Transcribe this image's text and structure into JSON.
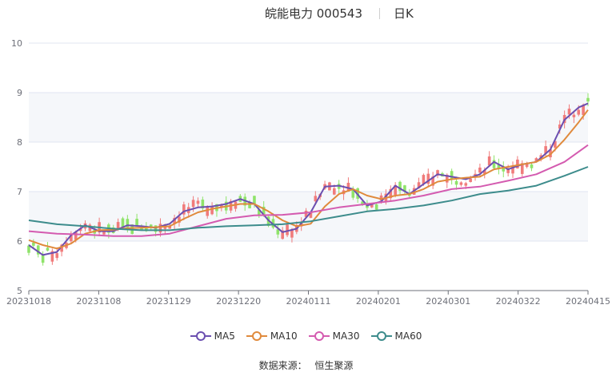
{
  "header": {
    "title": "皖能电力 000543",
    "period": "日K"
  },
  "source": {
    "label": "数据来源：",
    "name": "恒生聚源"
  },
  "colors": {
    "up": "#f07b7b",
    "down": "#8fe36a",
    "axis": "#6e7079",
    "grid": "#e0e6f1",
    "band": "#f5f7fa"
  },
  "chart_data": {
    "type": "line",
    "x_ticks": [
      "20231018",
      "20231108",
      "20231129",
      "20231220",
      "20240111",
      "20240201",
      "20240301",
      "20240322",
      "20240415"
    ],
    "y_ticks": [
      5,
      6,
      7,
      8,
      9,
      10
    ],
    "ylim": [
      5,
      10
    ],
    "trading_days": 120,
    "series": [
      {
        "name": "MA5",
        "color": "#6b4fb0",
        "x": [
          0,
          3,
          6,
          9,
          12,
          15,
          18,
          21,
          24,
          27,
          30,
          33,
          36,
          39,
          42,
          45,
          48,
          51,
          54,
          57,
          60,
          63,
          66,
          69,
          72,
          75,
          78,
          81,
          84,
          87,
          90,
          93,
          96,
          99,
          102,
          105,
          108,
          111,
          114,
          117,
          119
        ],
        "values": [
          5.92,
          5.72,
          5.78,
          6.12,
          6.32,
          6.2,
          6.2,
          6.32,
          6.3,
          6.27,
          6.35,
          6.6,
          6.68,
          6.7,
          6.75,
          6.85,
          6.75,
          6.42,
          6.18,
          6.25,
          6.58,
          7.1,
          7.12,
          7.05,
          6.72,
          6.8,
          7.12,
          6.95,
          7.15,
          7.35,
          7.3,
          7.25,
          7.35,
          7.6,
          7.45,
          7.55,
          7.6,
          7.85,
          8.45,
          8.7,
          8.78
        ]
      },
      {
        "name": "MA10",
        "color": "#e08a3c",
        "x": [
          0,
          3,
          6,
          9,
          12,
          15,
          18,
          21,
          24,
          27,
          30,
          33,
          36,
          39,
          42,
          45,
          48,
          51,
          54,
          57,
          60,
          63,
          66,
          69,
          72,
          75,
          78,
          81,
          84,
          87,
          90,
          93,
          96,
          99,
          102,
          105,
          108,
          111,
          114,
          117,
          119
        ],
        "values": [
          6.02,
          5.92,
          5.85,
          5.95,
          6.15,
          6.22,
          6.23,
          6.26,
          6.27,
          6.28,
          6.3,
          6.45,
          6.58,
          6.65,
          6.7,
          6.75,
          6.75,
          6.6,
          6.42,
          6.3,
          6.35,
          6.7,
          6.95,
          7.05,
          6.92,
          6.85,
          6.92,
          6.95,
          7.05,
          7.2,
          7.25,
          7.28,
          7.3,
          7.45,
          7.5,
          7.55,
          7.6,
          7.75,
          8.05,
          8.4,
          8.65
        ]
      },
      {
        "name": "MA30",
        "color": "#d45bb0",
        "x": [
          0,
          6,
          12,
          18,
          24,
          30,
          36,
          42,
          48,
          54,
          60,
          66,
          72,
          78,
          84,
          90,
          96,
          102,
          108,
          114,
          119
        ],
        "values": [
          6.2,
          6.15,
          6.13,
          6.1,
          6.1,
          6.15,
          6.3,
          6.45,
          6.52,
          6.53,
          6.58,
          6.68,
          6.75,
          6.82,
          6.92,
          7.05,
          7.1,
          7.22,
          7.35,
          7.6,
          7.94
        ]
      },
      {
        "name": "MA60",
        "color": "#3d8c8c",
        "x": [
          0,
          6,
          12,
          18,
          24,
          30,
          36,
          42,
          48,
          54,
          60,
          66,
          72,
          78,
          84,
          90,
          96,
          102,
          108,
          114,
          119
        ],
        "values": [
          6.42,
          6.34,
          6.3,
          6.25,
          6.22,
          6.22,
          6.27,
          6.3,
          6.32,
          6.34,
          6.4,
          6.5,
          6.6,
          6.65,
          6.72,
          6.82,
          6.95,
          7.02,
          7.12,
          7.32,
          7.5
        ]
      }
    ]
  }
}
